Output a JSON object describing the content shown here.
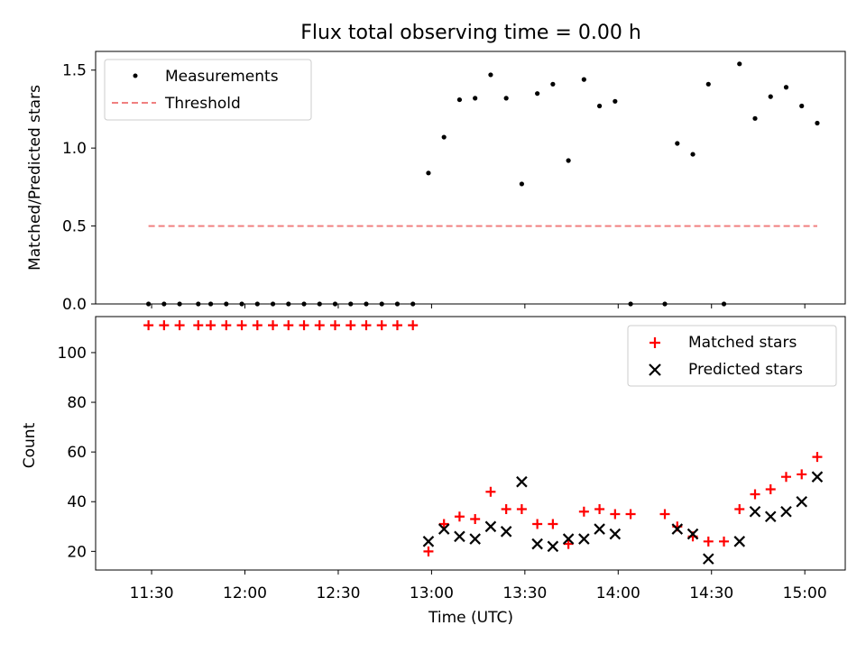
{
  "chart_data": [
    {
      "type": "scatter",
      "title": "Flux total observing time = 0.00 h",
      "xlabel": "",
      "ylabel": "Matched/Predicted stars",
      "ylim": [
        0,
        1.62
      ],
      "yticks": [
        "0.0",
        "0.5",
        "1.0",
        "1.5"
      ],
      "grid": false,
      "legend_position": "upper-left",
      "series": [
        {
          "name": "Measurements",
          "kind": "points",
          "color": "#000000",
          "x": [
            "11:29",
            "11:34",
            "11:39",
            "11:45",
            "11:49",
            "11:54",
            "11:59",
            "12:04",
            "12:09",
            "12:14",
            "12:19",
            "12:24",
            "12:29",
            "12:34",
            "12:39",
            "12:44",
            "12:49",
            "12:54",
            "12:59",
            "13:04",
            "13:09",
            "13:14",
            "13:19",
            "13:24",
            "13:29",
            "13:34",
            "13:39",
            "13:44",
            "13:49",
            "13:54",
            "13:59",
            "14:04",
            "14:15",
            "14:19",
            "14:24",
            "14:29",
            "14:34",
            "14:39",
            "14:44",
            "14:49",
            "14:54",
            "14:59",
            "15:04"
          ],
          "y": [
            0,
            0,
            0,
            0,
            0,
            0,
            0,
            0,
            0,
            0,
            0,
            0,
            0,
            0,
            0,
            0,
            0,
            0,
            0.84,
            1.07,
            1.31,
            1.32,
            1.47,
            1.32,
            0.77,
            1.35,
            1.41,
            0.92,
            1.44,
            1.27,
            1.3,
            0,
            0,
            1.03,
            0.96,
            1.41,
            0,
            1.54,
            1.19,
            1.33,
            1.39,
            1.27,
            1.16
          ]
        },
        {
          "name": "Threshold",
          "kind": "dashed-line",
          "color": "#f08080",
          "x": [
            "11:29",
            "15:04"
          ],
          "y": [
            0.5,
            0.5
          ]
        }
      ]
    },
    {
      "type": "scatter",
      "title": "",
      "xlabel": "Time (UTC)",
      "ylabel": "Count",
      "ylim": [
        12.5,
        114.5
      ],
      "yticks": [
        "20",
        "40",
        "60",
        "80",
        "100"
      ],
      "xticks": [
        "11:30",
        "12:00",
        "12:30",
        "13:00",
        "13:30",
        "14:00",
        "14:30",
        "15:00"
      ],
      "xlim": [
        "11:12",
        "15:13"
      ],
      "grid": false,
      "legend_position": "upper-right",
      "series": [
        {
          "name": "Matched stars",
          "marker": "+",
          "color": "#ff0000",
          "x": [
            "11:29",
            "11:34",
            "11:39",
            "11:45",
            "11:49",
            "11:54",
            "11:59",
            "12:04",
            "12:09",
            "12:14",
            "12:19",
            "12:24",
            "12:29",
            "12:34",
            "12:39",
            "12:44",
            "12:49",
            "12:54",
            "12:59",
            "13:04",
            "13:09",
            "13:14",
            "13:19",
            "13:24",
            "13:29",
            "13:34",
            "13:39",
            "13:44",
            "13:49",
            "13:54",
            "13:59",
            "14:04",
            "14:15",
            "14:19",
            "14:24",
            "14:29",
            "14:34",
            "14:39",
            "14:44",
            "14:49",
            "14:54",
            "14:59",
            "15:04"
          ],
          "y": [
            111,
            111,
            111,
            111,
            111,
            111,
            111,
            111,
            111,
            111,
            111,
            111,
            111,
            111,
            111,
            111,
            111,
            111,
            20,
            31,
            34,
            33,
            44,
            37,
            37,
            31,
            31,
            23,
            36,
            37,
            35,
            35,
            35,
            30,
            26,
            24,
            24,
            37,
            43,
            45,
            50,
            51,
            58
          ]
        },
        {
          "name": "Predicted stars",
          "marker": "x",
          "color": "#000000",
          "x": [
            "12:59",
            "13:04",
            "13:09",
            "13:14",
            "13:19",
            "13:24",
            "13:29",
            "13:34",
            "13:39",
            "13:44",
            "13:49",
            "13:54",
            "13:59",
            "14:19",
            "14:24",
            "14:29",
            "14:39",
            "14:44",
            "14:49",
            "14:54",
            "14:59",
            "15:04"
          ],
          "y": [
            24,
            29,
            26,
            25,
            30,
            28,
            48,
            23,
            22,
            25,
            25,
            29,
            27,
            29,
            27,
            17,
            24,
            36,
            34,
            36,
            40,
            50
          ]
        }
      ]
    }
  ]
}
